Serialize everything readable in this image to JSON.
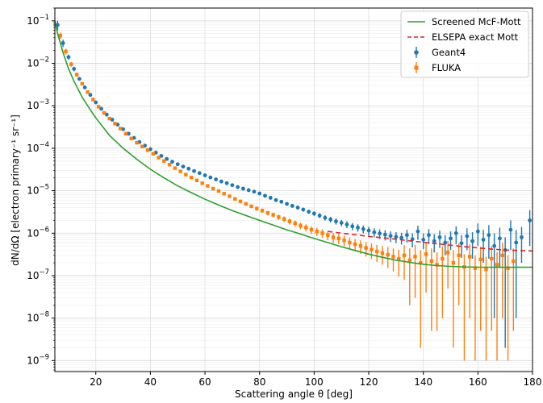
{
  "chart_data": {
    "type": "scatter",
    "title": "",
    "xlabel": "Scattering angle θ [deg]",
    "ylabel": "dN/dΩ [electron primary⁻¹ sr⁻¹]",
    "xlim": [
      5,
      180
    ],
    "ylim": [
      5.5e-10,
      0.2
    ],
    "yscale": "log",
    "grid": true,
    "legend_position": "upper right",
    "x_ticks": [
      20,
      40,
      60,
      80,
      100,
      120,
      140,
      160,
      180
    ],
    "y_ticks": [
      {
        "value": 1e-09,
        "base": "10",
        "exp": "−9"
      },
      {
        "value": 1e-08,
        "base": "10",
        "exp": "−8"
      },
      {
        "value": 1e-07,
        "base": "10",
        "exp": "−7"
      },
      {
        "value": 1e-06,
        "base": "10",
        "exp": "−6"
      },
      {
        "value": 1e-05,
        "base": "10",
        "exp": "−5"
      },
      {
        "value": 0.0001,
        "base": "10",
        "exp": "−4"
      },
      {
        "value": 0.001,
        "base": "10",
        "exp": "−3"
      },
      {
        "value": 0.01,
        "base": "10",
        "exp": "−2"
      },
      {
        "value": 0.1,
        "base": "10",
        "exp": "−1"
      }
    ],
    "series": [
      {
        "name": "Screened McF-Mott",
        "kind": "line",
        "color": "#2ca02c",
        "dash": "",
        "x": [
          5,
          6,
          7,
          8,
          10,
          12,
          15,
          18,
          20,
          25,
          30,
          35,
          40,
          45,
          50,
          55,
          60,
          65,
          70,
          75,
          80,
          85,
          90,
          95,
          100,
          105,
          110,
          115,
          120,
          125,
          130,
          135,
          140,
          145,
          150,
          155,
          160,
          165,
          170,
          175,
          180
        ],
        "y": [
          0.1,
          0.05,
          0.03,
          0.018,
          0.0075,
          0.0038,
          0.0016,
          0.0008,
          0.00052,
          0.0002,
          0.0001,
          5.5e-05,
          3.2e-05,
          2e-05,
          1.3e-05,
          9e-06,
          6.3e-06,
          4.6e-06,
          3.4e-06,
          2.6e-06,
          2e-06,
          1.55e-06,
          1.2e-06,
          9.5e-07,
          7.5e-07,
          6e-07,
          4.8e-07,
          3.9e-07,
          3.2e-07,
          2.7e-07,
          2.3e-07,
          2.05e-07,
          1.85e-07,
          1.72e-07,
          1.65e-07,
          1.6e-07,
          1.58e-07,
          1.57e-07,
          1.57e-07,
          1.57e-07,
          1.57e-07
        ]
      },
      {
        "name": "ELSEPA exact Mott",
        "kind": "line",
        "color": "#d62728",
        "dash": "6,4",
        "x": [
          105,
          110,
          115,
          120,
          125,
          130,
          135,
          140,
          145,
          150,
          155,
          160,
          165,
          170,
          175,
          180
        ],
        "y": [
          1.1e-06,
          1e-06,
          9.2e-07,
          8.4e-07,
          7.8e-07,
          7.2e-07,
          6.6e-07,
          6.1e-07,
          5.6e-07,
          5.2e-07,
          4.8e-07,
          4.5e-07,
          4.2e-07,
          4e-07,
          3.9e-07,
          3.8e-07
        ]
      },
      {
        "name": "Geant4",
        "kind": "errorbar",
        "color": "#1f77b4",
        "x": [
          6,
          8,
          10,
          12,
          14,
          16,
          18,
          20,
          22,
          24,
          26,
          28,
          30,
          32,
          34,
          36,
          38,
          40,
          42,
          44,
          46,
          48,
          50,
          52,
          54,
          56,
          58,
          60,
          62,
          64,
          66,
          68,
          70,
          72,
          74,
          76,
          78,
          80,
          82,
          84,
          86,
          88,
          90,
          92,
          94,
          96,
          98,
          100,
          102,
          104,
          106,
          108,
          110,
          112,
          114,
          116,
          118,
          120,
          122,
          124,
          126,
          128,
          130,
          132,
          134,
          136,
          138,
          140,
          142,
          144,
          146,
          148,
          150,
          152,
          154,
          156,
          158,
          160,
          162,
          164,
          166,
          168,
          170,
          172,
          174,
          176,
          179
        ],
        "y": [
          0.08,
          0.03,
          0.014,
          0.0074,
          0.0043,
          0.0027,
          0.0018,
          0.0012,
          0.00085,
          0.00062,
          0.00047,
          0.00036,
          0.00028,
          0.00022,
          0.000175,
          0.00014,
          0.000115,
          9.5e-05,
          7.9e-05,
          6.6e-05,
          5.6e-05,
          4.8e-05,
          4.2e-05,
          3.7e-05,
          3.3e-05,
          2.9e-05,
          2.6e-05,
          2.3e-05,
          2.05e-05,
          1.85e-05,
          1.65e-05,
          1.5e-05,
          1.35e-05,
          1.22e-05,
          1.12e-05,
          1.03e-05,
          9.5e-06,
          8.6e-06,
          7.6e-06,
          6.8e-06,
          6e-06,
          5.5e-06,
          4.9e-06,
          4.4e-06,
          4e-06,
          3.6e-06,
          3.2e-06,
          2.9e-06,
          2.6e-06,
          2.3e-06,
          2.1e-06,
          1.9e-06,
          1.75e-06,
          1.6e-06,
          1.45e-06,
          1.35e-06,
          1.25e-06,
          1.15e-06,
          1.05e-06,
          9.8e-07,
          9.2e-07,
          8.6e-07,
          8.2e-07,
          7.8e-07,
          9e-07,
          7.2e-07,
          1.1e-06,
          7e-07,
          9e-07,
          6.5e-07,
          8e-07,
          6e-07,
          7.5e-07,
          1e-06,
          5.8e-07,
          8.5e-07,
          6.5e-07,
          1.1e-06,
          7e-07,
          9e-07,
          5e-07,
          7.5e-07,
          4e-07,
          1.2e-06,
          6e-07,
          8e-07,
          2e-06
        ],
        "err": [
          0.02,
          0.006,
          0.002,
          0.0009,
          0.0004,
          0.0002,
          0.0001,
          6e-05,
          4e-05,
          3e-05,
          2e-05,
          1.5e-05,
          1.1e-05,
          9e-06,
          7e-06,
          5.5e-06,
          4.5e-06,
          3.6e-06,
          3e-06,
          2.6e-06,
          2.2e-06,
          1.9e-06,
          1.7e-06,
          1.5e-06,
          1.35e-06,
          1.2e-06,
          1.1e-06,
          1e-06,
          9.2e-07,
          8.6e-07,
          8e-07,
          7.6e-07,
          7.2e-07,
          6.8e-07,
          6.5e-07,
          6.2e-07,
          6e-07,
          5.8e-07,
          5.5e-07,
          5.2e-07,
          5e-07,
          4.8e-07,
          4.5e-07,
          4.3e-07,
          4.1e-07,
          3.9e-07,
          3.7e-07,
          3.5e-07,
          3.4e-07,
          3.3e-07,
          3.2e-07,
          3.1e-07,
          3e-07,
          2.9e-07,
          2.8e-07,
          2.7e-07,
          2.6e-07,
          2.6e-07,
          2.5e-07,
          2.5e-07,
          2.5e-07,
          2.4e-07,
          2.4e-07,
          2.4e-07,
          3e-07,
          2.6e-07,
          4e-07,
          2.8e-07,
          3.5e-07,
          3e-07,
          3.5e-07,
          3e-07,
          3.5e-07,
          4.5e-07,
          3.2e-07,
          4.5e-07,
          4e-07,
          6e-07,
          5e-07,
          6.5e-07,
          4.9e-07,
          6e-07,
          3.98e-07,
          8e-07,
          5.9e-07,
          6e-07,
          1.5e-06
        ]
      },
      {
        "name": "FLUKA",
        "kind": "errorbar",
        "color": "#ff7f0e",
        "x": [
          7,
          9,
          11,
          13,
          15,
          17,
          19,
          21,
          23,
          25,
          27,
          29,
          31,
          33,
          35,
          37,
          39,
          41,
          43,
          45,
          47,
          49,
          51,
          53,
          55,
          57,
          59,
          61,
          63,
          65,
          67,
          69,
          71,
          73,
          75,
          77,
          79,
          81,
          83,
          85,
          87,
          89,
          91,
          93,
          95,
          97,
          99,
          101,
          103,
          105,
          107,
          109,
          111,
          113,
          115,
          117,
          119,
          121,
          123,
          125,
          127,
          129,
          131,
          133,
          135,
          137,
          139,
          141,
          143,
          145,
          147,
          149,
          151,
          153,
          155,
          157,
          159,
          161,
          163,
          165,
          167,
          169,
          171,
          173
        ],
        "y": [
          0.045,
          0.019,
          0.0095,
          0.0054,
          0.0033,
          0.0021,
          0.0014,
          0.00095,
          0.00068,
          0.0005,
          0.00038,
          0.00029,
          0.00022,
          0.00017,
          0.000135,
          0.00011,
          9e-05,
          7.4e-05,
          6e-05,
          5e-05,
          4.1e-05,
          3.4e-05,
          2.85e-05,
          2.4e-05,
          2.05e-05,
          1.75e-05,
          1.5e-05,
          1.3e-05,
          1.12e-05,
          9.8e-06,
          8.5e-06,
          7.4e-06,
          6.4e-06,
          5.6e-06,
          4.9e-06,
          4.3e-06,
          3.8e-06,
          3.4e-06,
          3e-06,
          2.7e-06,
          2.4e-06,
          2.15e-06,
          1.9e-06,
          1.7e-06,
          1.5e-06,
          1.35e-06,
          1.2e-06,
          1.1e-06,
          1e-06,
          9e-07,
          8e-07,
          7.5e-07,
          6.8e-07,
          6e-07,
          5.5e-07,
          5e-07,
          4.5e-07,
          4.1e-07,
          3.7e-07,
          3.4e-07,
          3.1e-07,
          2.8e-07,
          2.5e-07,
          3e-07,
          2.3e-07,
          2.8e-07,
          2e-07,
          3.2e-07,
          2.2e-07,
          1.8e-07,
          2.5e-07,
          3.5e-07,
          2e-07,
          3e-07,
          1.6e-07,
          2.8e-07,
          1.5e-07,
          2.4e-07,
          1.4e-07,
          2.5e-07,
          1.8e-07,
          3e-07,
          1.5e-07,
          2.2e-07
        ],
        "err": [
          0.008,
          0.003,
          0.0012,
          0.0006,
          0.0003,
          0.00016,
          0.0001,
          6e-05,
          4e-05,
          3e-05,
          2.2e-05,
          1.6e-05,
          1.2e-05,
          9e-06,
          7e-06,
          5.5e-06,
          4.5e-06,
          3.6e-06,
          3e-06,
          2.5e-06,
          2.1e-06,
          1.8e-06,
          1.55e-06,
          1.35e-06,
          1.2e-06,
          1.05e-06,
          9.5e-07,
          8.5e-07,
          7.8e-07,
          7.2e-07,
          6.6e-07,
          6.1e-07,
          5.6e-07,
          5.2e-07,
          4.8e-07,
          4.5e-07,
          4.2e-07,
          4e-07,
          3.8e-07,
          3.6e-07,
          3.4e-07,
          3.2e-07,
          3e-07,
          2.85e-07,
          2.7e-07,
          2.6e-07,
          2.5e-07,
          2.4e-07,
          2.3e-07,
          2.2e-07,
          2.1e-07,
          2e-07,
          1.9e-07,
          1.85e-07,
          1.8e-07,
          1.75e-07,
          1.7e-07,
          1.65e-07,
          1.6e-07,
          1.6e-07,
          1.6e-07,
          1.55e-07,
          1.55e-07,
          2.2e-07,
          2.1e-07,
          2.5e-07,
          1.98e-07,
          2.8e-07,
          2.15e-07,
          1.75e-07,
          2.4e-07,
          3e-07,
          1.98e-07,
          2.8e-07,
          1.59e-07,
          2.7e-07,
          1.49e-07,
          2.35e-07,
          1.39e-07,
          2.45e-07,
          1.79e-07,
          2.9e-07,
          1.49e-07,
          2.15e-07
        ]
      }
    ]
  }
}
